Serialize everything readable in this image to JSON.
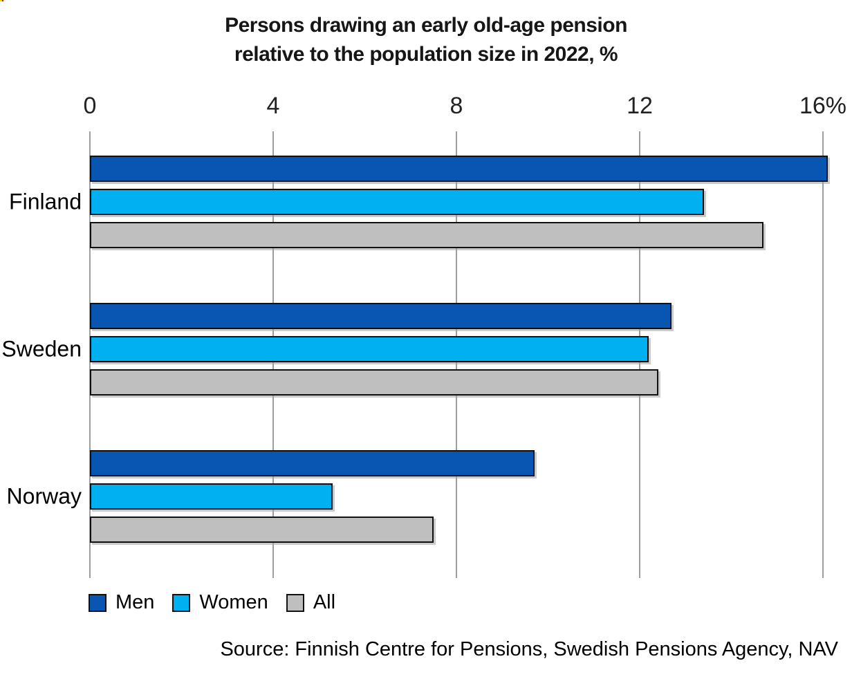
{
  "title": {
    "line1": "Persons drawing an early old-age pension",
    "line2": "relative to the population size in 2022, %"
  },
  "chart_data": {
    "type": "bar",
    "orientation": "horizontal",
    "title": "Persons drawing an early old-age pension relative to the population size in 2022, %",
    "categories": [
      "Finland",
      "Sweden",
      "Norway"
    ],
    "series": [
      {
        "name": "Men",
        "color": "#0855b2",
        "values": [
          16.1,
          12.7,
          9.7
        ]
      },
      {
        "name": "Women",
        "color": "#00b0f0",
        "values": [
          13.4,
          12.2,
          5.3
        ]
      },
      {
        "name": "All",
        "color": "#bfbfbf",
        "values": [
          14.7,
          12.4,
          7.5
        ]
      }
    ],
    "x_axis": {
      "ticks": [
        0,
        4,
        8,
        12,
        16
      ],
      "tick_labels": [
        "0",
        "4",
        "8",
        "12",
        "16%"
      ],
      "range": [
        0,
        16.6
      ],
      "position": "top"
    },
    "grid": true,
    "legend_position": "bottom"
  },
  "legend": {
    "items": [
      {
        "label": "Men",
        "color": "#0855b2"
      },
      {
        "label": "Women",
        "color": "#00b0f0"
      },
      {
        "label": "All",
        "color": "#bfbfbf"
      }
    ]
  },
  "source": {
    "text": "Source: Finnish Centre for Pensions, Swedish Pensions Agency, NAV"
  },
  "colors": {
    "bar_border": "#101010",
    "gridline": "#9e9e9e",
    "background": "#ffffff"
  }
}
